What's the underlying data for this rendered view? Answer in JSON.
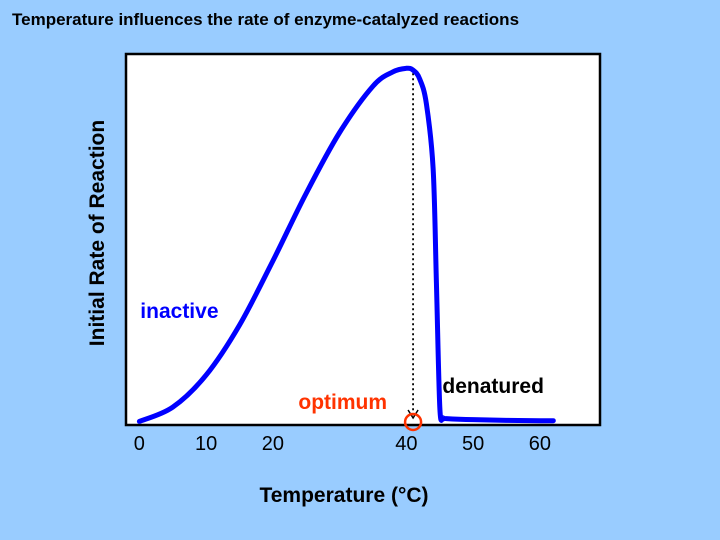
{
  "title": "Temperature influences the rate of enzyme-catalyzed reactions",
  "colors": {
    "background": "#99ccff",
    "curve": "#0000ff",
    "inactive_label": "#0000ff",
    "optimum_label": "#ff3300",
    "denatured_label": "#000000"
  },
  "chart_data": {
    "type": "line",
    "title": "Temperature influences the rate of enzyme-catalyzed reactions",
    "xlabel": "Temperature (°C)",
    "ylabel": "Initial Rate of Reaction",
    "xlim": [
      -2,
      69
    ],
    "ylim": [
      0,
      1.04
    ],
    "x_ticks": [
      0,
      10,
      20,
      40,
      50,
      60
    ],
    "x_tick_labels": [
      "0",
      "10",
      "20",
      "40",
      "50",
      "60"
    ],
    "grid": false,
    "series": [
      {
        "name": "Initial rate of reaction",
        "x": [
          0,
          5,
          10,
          15,
          20,
          25,
          30,
          35,
          38,
          40,
          41,
          42,
          43,
          44,
          44.5,
          45,
          45.5,
          46,
          50,
          55,
          60,
          62
        ],
        "y": [
          0.01,
          0.05,
          0.14,
          0.28,
          0.46,
          0.65,
          0.82,
          0.95,
          0.99,
          1.0,
          0.995,
          0.97,
          0.9,
          0.72,
          0.4,
          0.05,
          0.02,
          0.018,
          0.015,
          0.013,
          0.012,
          0.012
        ]
      }
    ],
    "optimum": {
      "x": 41,
      "label": "optimum"
    },
    "annotations": [
      {
        "text": "inactive",
        "x": 6,
        "y": 0.3,
        "color": "#0000ff"
      },
      {
        "text": "denatured",
        "x": 53,
        "y": 0.09,
        "color": "#000000"
      }
    ]
  }
}
